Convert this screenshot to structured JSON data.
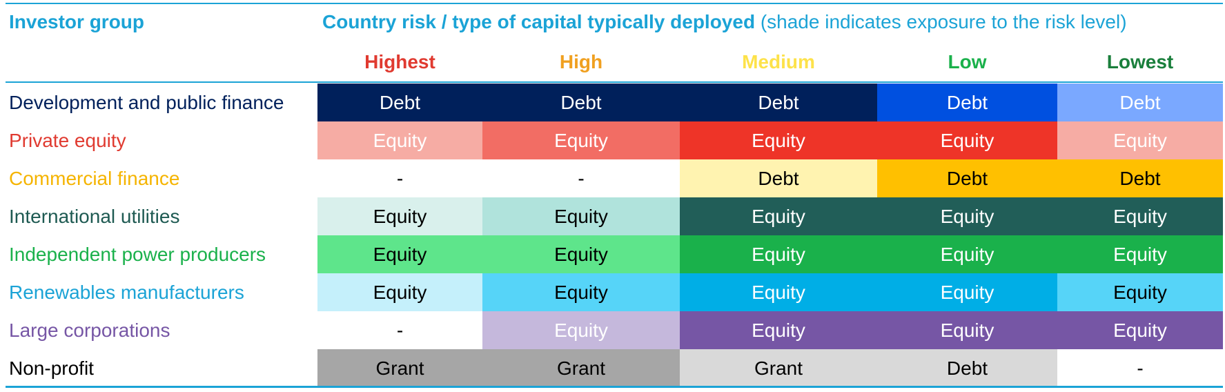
{
  "header": {
    "investor_group": "Investor group",
    "title_bold": "Country risk / type of capital typically deployed",
    "title_note": " (shade indicates exposure to the risk level)",
    "color": "#1ba3d6"
  },
  "columns": [
    {
      "label": "Highest",
      "color": "#e03a30"
    },
    {
      "label": "High",
      "color": "#f0a020"
    },
    {
      "label": "Medium",
      "color": "#fde24a"
    },
    {
      "label": "Low",
      "color": "#1ab14b"
    },
    {
      "label": "Lowest",
      "color": "#1a7f3c"
    }
  ],
  "rows": [
    {
      "label": "Development and public finance",
      "label_color": "#00205b",
      "cells": [
        {
          "text": "Debt",
          "bg": "#00205b",
          "fg": "#ffffff"
        },
        {
          "text": "Debt",
          "bg": "#00205b",
          "fg": "#ffffff"
        },
        {
          "text": "Debt",
          "bg": "#00205b",
          "fg": "#ffffff"
        },
        {
          "text": "Debt",
          "bg": "#0050e0",
          "fg": "#ffffff"
        },
        {
          "text": "Debt",
          "bg": "#7aa8ff",
          "fg": "#ffffff"
        }
      ]
    },
    {
      "label": "Private equity",
      "label_color": "#e03a30",
      "cells": [
        {
          "text": "Equity",
          "bg": "#f6aca4",
          "fg": "#ffffff"
        },
        {
          "text": "Equity",
          "bg": "#f26d64",
          "fg": "#ffffff"
        },
        {
          "text": "Equity",
          "bg": "#ee3428",
          "fg": "#ffffff"
        },
        {
          "text": "Equity",
          "bg": "#ee3428",
          "fg": "#ffffff"
        },
        {
          "text": "Equity",
          "bg": "#f6aca4",
          "fg": "#ffffff"
        }
      ]
    },
    {
      "label": "Commercial finance",
      "label_color": "#f5b400",
      "cells": [
        {
          "text": "-",
          "bg": "#ffffff",
          "fg": "#000000"
        },
        {
          "text": "-",
          "bg": "#ffffff",
          "fg": "#000000"
        },
        {
          "text": "Debt",
          "bg": "#fff3b0",
          "fg": "#000000"
        },
        {
          "text": "Debt",
          "bg": "#ffc000",
          "fg": "#000000"
        },
        {
          "text": "Debt",
          "bg": "#ffc000",
          "fg": "#000000"
        }
      ]
    },
    {
      "label": "International utilities",
      "label_color": "#1e5a52",
      "cells": [
        {
          "text": "Equity",
          "bg": "#d9f0ec",
          "fg": "#000000"
        },
        {
          "text": "Equity",
          "bg": "#b0e3dc",
          "fg": "#000000"
        },
        {
          "text": "Equity",
          "bg": "#215e58",
          "fg": "#ffffff"
        },
        {
          "text": "Equity",
          "bg": "#215e58",
          "fg": "#ffffff"
        },
        {
          "text": "Equity",
          "bg": "#215e58",
          "fg": "#ffffff"
        }
      ]
    },
    {
      "label": "Independent power producers",
      "label_color": "#1ab14b",
      "cells": [
        {
          "text": "Equity",
          "bg": "#5ee58b",
          "fg": "#000000"
        },
        {
          "text": "Equity",
          "bg": "#5ee58b",
          "fg": "#000000"
        },
        {
          "text": "Equity",
          "bg": "#1ab14b",
          "fg": "#ffffff"
        },
        {
          "text": "Equity",
          "bg": "#1ab14b",
          "fg": "#ffffff"
        },
        {
          "text": "Equity",
          "bg": "#1ab14b",
          "fg": "#ffffff"
        }
      ]
    },
    {
      "label": "Renewables manufacturers",
      "label_color": "#1ba3d6",
      "cells": [
        {
          "text": "Equity",
          "bg": "#c5f0fb",
          "fg": "#000000"
        },
        {
          "text": "Equity",
          "bg": "#56d4f8",
          "fg": "#000000"
        },
        {
          "text": "Equity",
          "bg": "#00aee6",
          "fg": "#ffffff"
        },
        {
          "text": "Equity",
          "bg": "#00aee6",
          "fg": "#ffffff"
        },
        {
          "text": "Equity",
          "bg": "#56d4f8",
          "fg": "#000000"
        }
      ]
    },
    {
      "label": "Large corporations",
      "label_color": "#7656a5",
      "cells": [
        {
          "text": "-",
          "bg": "#ffffff",
          "fg": "#000000"
        },
        {
          "text": "Equity",
          "bg": "#c5b8dc",
          "fg": "#ffffff"
        },
        {
          "text": "Equity",
          "bg": "#7656a5",
          "fg": "#ffffff"
        },
        {
          "text": "Equity",
          "bg": "#7656a5",
          "fg": "#ffffff"
        },
        {
          "text": "Equity",
          "bg": "#7656a5",
          "fg": "#ffffff"
        }
      ]
    },
    {
      "label": "Non-profit",
      "label_color": "#000000",
      "cells": [
        {
          "text": "Grant",
          "bg": "#a6a6a6",
          "fg": "#000000"
        },
        {
          "text": "Grant",
          "bg": "#a6a6a6",
          "fg": "#000000"
        },
        {
          "text": "Grant",
          "bg": "#d9d9d9",
          "fg": "#000000"
        },
        {
          "text": "Debt",
          "bg": "#d9d9d9",
          "fg": "#000000"
        },
        {
          "text": "-",
          "bg": "#ffffff",
          "fg": "#000000"
        }
      ]
    }
  ]
}
